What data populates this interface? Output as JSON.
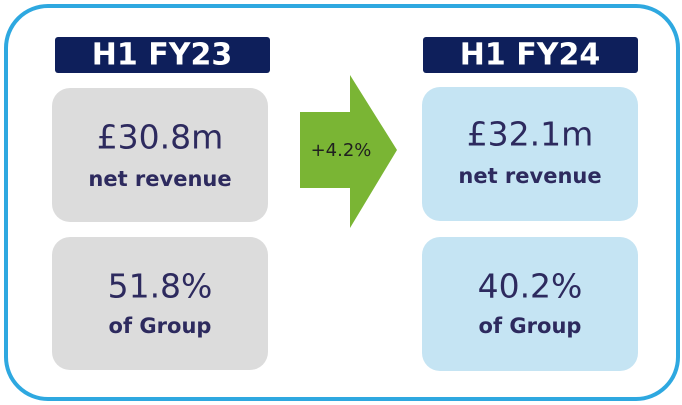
{
  "periods": [
    {
      "label": "H1 FY23",
      "revenue": "£30.8m",
      "revenue_caption": "net revenue",
      "share": "51.8%",
      "share_caption": "of Group"
    },
    {
      "label": "H1 FY24",
      "revenue": "£32.1m",
      "revenue_caption": "net revenue",
      "share": "40.2%",
      "share_caption": "of Group"
    }
  ],
  "change": "+4.2%"
}
